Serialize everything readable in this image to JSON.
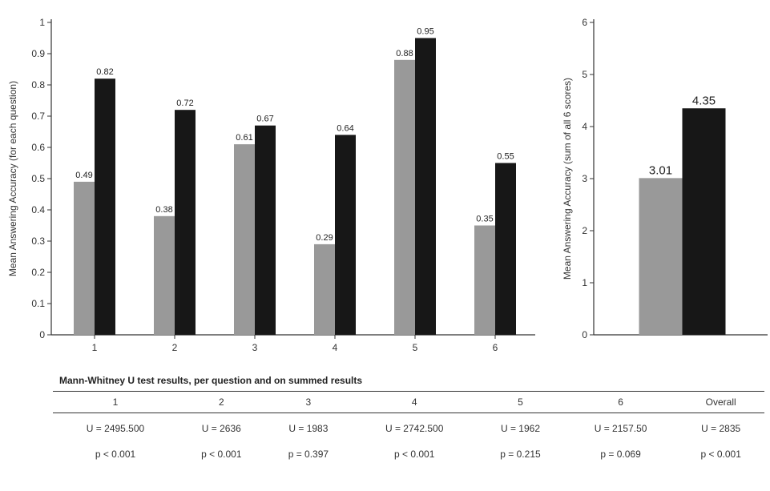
{
  "chart_data": [
    {
      "type": "bar",
      "categories": [
        "1",
        "2",
        "3",
        "4",
        "5",
        "6"
      ],
      "series": [
        {
          "values": [
            0.49,
            0.38,
            0.61,
            0.29,
            0.88,
            0.35
          ],
          "color": "#999999"
        },
        {
          "values": [
            0.82,
            0.72,
            0.67,
            0.64,
            0.95,
            0.55
          ],
          "color": "#171717"
        }
      ],
      "ylabel": "Mean Answering Accuracy (for each question)",
      "yticks": [
        "0",
        "0.1",
        "0.2",
        "0.3",
        "0.4",
        "0.5",
        "0.6",
        "0.7",
        "0.8",
        "0.9",
        "1"
      ],
      "ylim": [
        0,
        1
      ],
      "grid": false
    },
    {
      "type": "bar",
      "categories": [
        ""
      ],
      "series": [
        {
          "values": [
            3.01
          ],
          "color": "#999999"
        },
        {
          "values": [
            4.35
          ],
          "color": "#171717"
        }
      ],
      "ylabel": "Mean Answering Accuracy (sum of all 6 scores)",
      "yticks": [
        "0",
        "1",
        "2",
        "3",
        "4",
        "5",
        "6"
      ],
      "ylim": [
        0,
        6
      ],
      "grid": false
    }
  ],
  "table": {
    "title": "Mann-Whitney U test results, per question and on summed results",
    "headers": [
      "1",
      "2",
      "3",
      "4",
      "5",
      "6",
      "Overall"
    ],
    "u_row": [
      "U = 2495.500",
      "U = 2636",
      "U = 1983",
      "U = 2742.500",
      "U = 1962",
      "U = 2157.50",
      "U = 2835"
    ],
    "p_row": [
      "p < 0.001",
      "p < 0.001",
      "p = 0.397",
      "p < 0.001",
      "p = 0.215",
      "p = 0.069",
      "p < 0.001"
    ]
  }
}
